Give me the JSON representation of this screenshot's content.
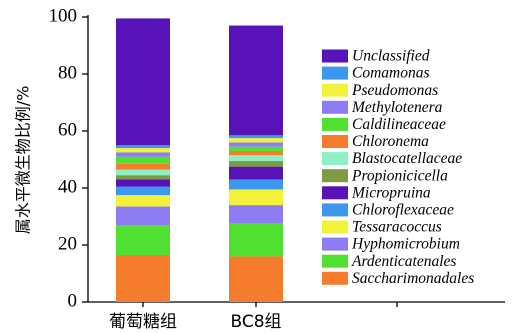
{
  "chart_data": {
    "type": "bar",
    "stacked": true,
    "categories": [
      "葡萄糖组",
      "BC8组"
    ],
    "ylabel": "属水平微生物比例/%",
    "ylim": [
      0,
      100
    ],
    "yticks": [
      0,
      20,
      40,
      60,
      80,
      100
    ],
    "legend_position": "right",
    "series": [
      {
        "name": "Saccharimonadales",
        "color": "#F47C2C",
        "values": [
          16.5,
          16
        ]
      },
      {
        "name": "Ardenticatenales",
        "color": "#4FE032",
        "values": [
          10.5,
          11.5
        ]
      },
      {
        "name": "Hyphomicrobium",
        "color": "#8E7CF2",
        "values": [
          6.5,
          6.5
        ]
      },
      {
        "name": "Tessaracoccus",
        "color": "#F3F23A",
        "values": [
          4,
          5.5
        ]
      },
      {
        "name": "Chloroflexaceae",
        "color": "#3C97EE",
        "values": [
          3,
          3.5
        ]
      },
      {
        "name": "Micropruina",
        "color": "#5713B7",
        "values": [
          2.5,
          4.5
        ]
      },
      {
        "name": "Propionicicella",
        "color": "#7E9A43",
        "values": [
          1.5,
          2
        ]
      },
      {
        "name": "Blastocatellaceae",
        "color": "#8FF0C6",
        "values": [
          2,
          2
        ]
      },
      {
        "name": "Chloronema",
        "color": "#F47C2C",
        "values": [
          2,
          1.5
        ]
      },
      {
        "name": "Caldilineaceae",
        "color": "#4FE032",
        "values": [
          2.5,
          1.5
        ]
      },
      {
        "name": "Methylotenera",
        "color": "#8E7CF2",
        "values": [
          1.5,
          1.5
        ]
      },
      {
        "name": "Pseudomonas",
        "color": "#F3F23A",
        "values": [
          1.5,
          1.5
        ]
      },
      {
        "name": "Comamonas",
        "color": "#3C97EE",
        "values": [
          1,
          1
        ]
      },
      {
        "name": "Unclassified",
        "color": "#5713B7",
        "values": [
          44.5,
          38.5
        ]
      }
    ]
  }
}
